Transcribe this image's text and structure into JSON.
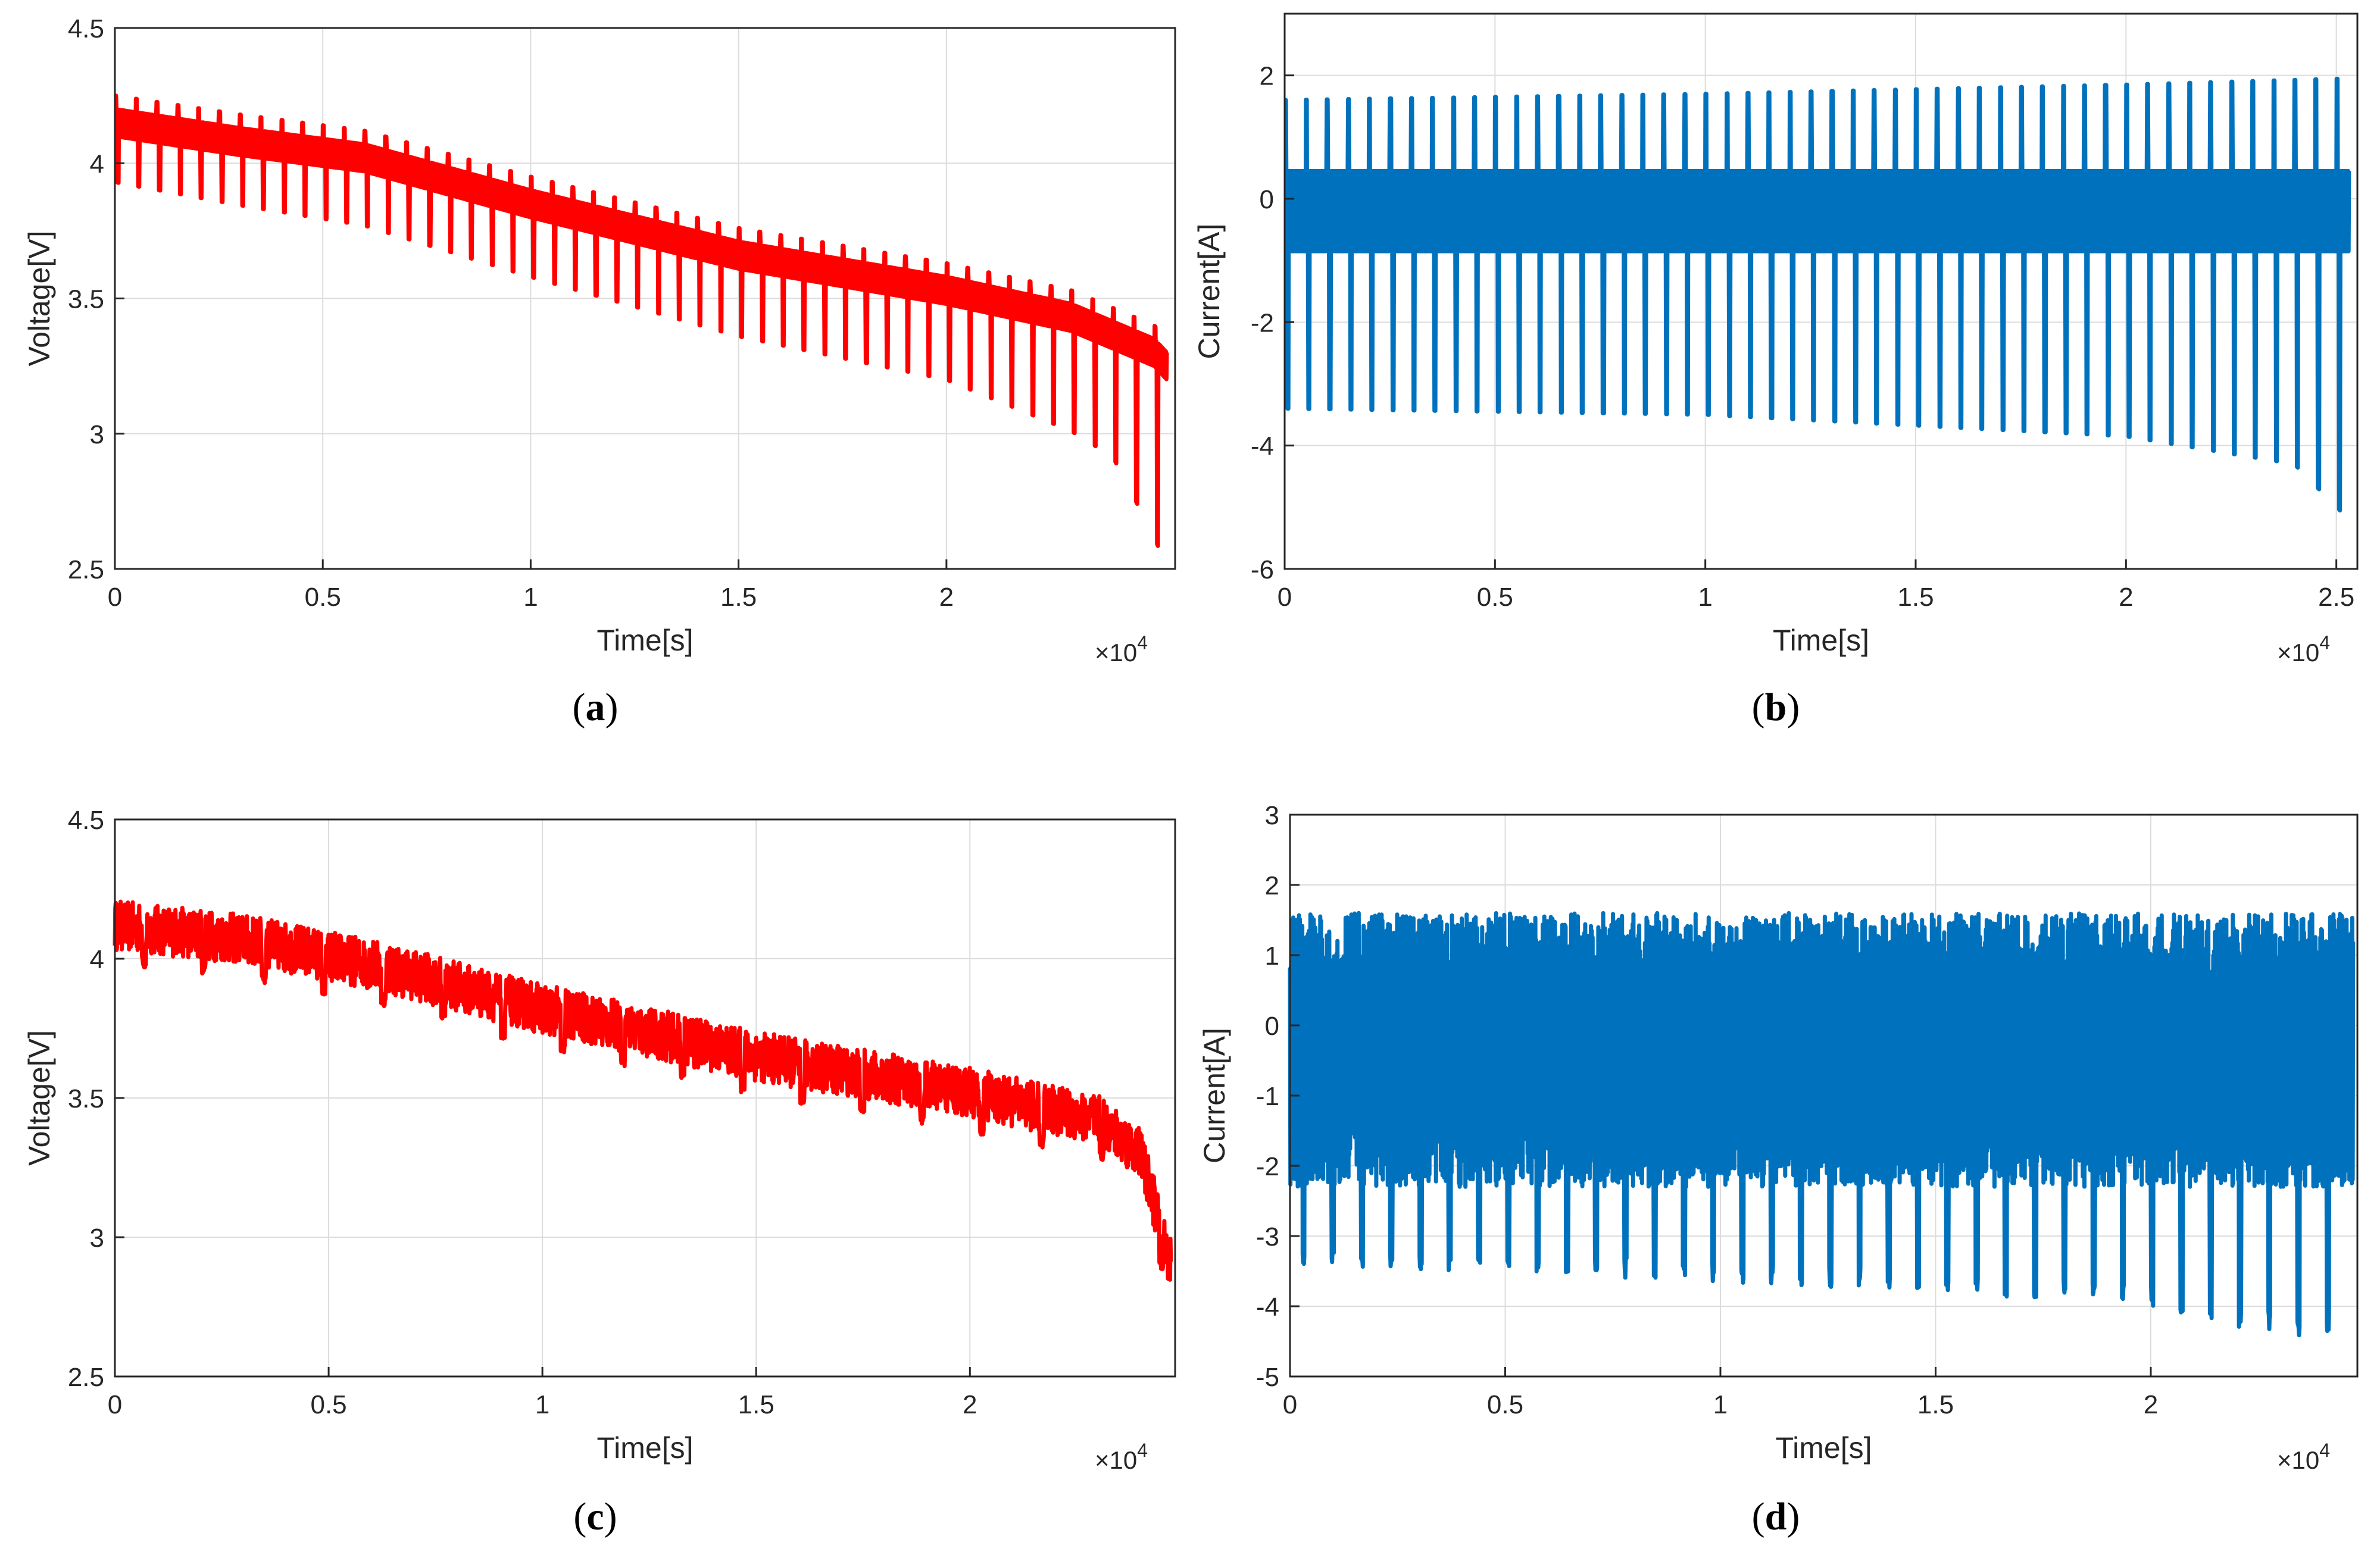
{
  "chart_data": [
    {
      "id": "a",
      "type": "line",
      "caption": "a",
      "xlabel": "Time[s]",
      "ylabel": "Voltage[V]",
      "x_exponent_label": "×10",
      "x_exponent_power": "4",
      "xlim": [
        0,
        2.55
      ],
      "ylim": [
        2.5,
        4.5
      ],
      "xticks": [
        0,
        0.5,
        1,
        1.5,
        2
      ],
      "xtick_labels": [
        "0",
        "0.5",
        "1",
        "1.5",
        "2"
      ],
      "yticks": [
        2.5,
        3,
        3.5,
        4,
        4.5
      ],
      "ytick_labels": [
        "2.5",
        "3",
        "3.5",
        "4",
        "4.5"
      ],
      "grid": true,
      "series": [
        {
          "name": "voltage",
          "color": "#ff0000",
          "signal": "pulsed",
          "x_end": 2.53,
          "pulse_period": 0.05,
          "baseline": [
            [
              0,
              4.15
            ],
            [
              0.3,
              4.08
            ],
            [
              0.6,
              4.02
            ],
            [
              1.0,
              3.85
            ],
            [
              1.5,
              3.66
            ],
            [
              2.0,
              3.53
            ],
            [
              2.3,
              3.43
            ],
            [
              2.5,
              3.3
            ],
            [
              2.53,
              3.25
            ]
          ],
          "band": 0.05,
          "pulse_high": 0.1,
          "pulse_low": [
            [
              0,
              -0.22
            ],
            [
              1.0,
              -0.27
            ],
            [
              2.0,
              -0.33
            ],
            [
              2.4,
              -0.45
            ],
            [
              2.53,
              -0.75
            ]
          ]
        }
      ]
    },
    {
      "id": "b",
      "type": "line",
      "caption": "b",
      "xlabel": "Time[s]",
      "ylabel": "Current[A]",
      "x_exponent_label": "×10",
      "x_exponent_power": "4",
      "xlim": [
        0,
        2.55
      ],
      "ylim": [
        -6,
        3
      ],
      "xticks": [
        0,
        0.5,
        1,
        1.5,
        2,
        2.5
      ],
      "xtick_labels": [
        "0",
        "0.5",
        "1",
        "1.5",
        "2",
        "2.5"
      ],
      "yticks": [
        -6,
        -4,
        -2,
        0,
        2
      ],
      "ytick_labels": [
        "-6",
        "-4",
        "-2",
        "0",
        "2"
      ],
      "grid": true,
      "series": [
        {
          "name": "current",
          "color": "#0072bd",
          "signal": "pulsed",
          "x_end": 2.53,
          "pulse_period": 0.05,
          "baseline": [
            [
              0,
              -0.2
            ],
            [
              2.53,
              -0.2
            ]
          ],
          "band": 0.65,
          "pulse_high_abs": [
            [
              0,
              1.6
            ],
            [
              1.0,
              1.7
            ],
            [
              2.0,
              1.85
            ],
            [
              2.53,
              1.95
            ]
          ],
          "pulse_low_abs": [
            [
              0,
              -3.4
            ],
            [
              1.0,
              -3.5
            ],
            [
              2.0,
              -3.85
            ],
            [
              2.4,
              -4.3
            ],
            [
              2.53,
              -5.2
            ]
          ]
        }
      ]
    },
    {
      "id": "c",
      "type": "line",
      "caption": "c",
      "xlabel": "Time[s]",
      "ylabel": "Voltage[V]",
      "x_exponent_label": "×10",
      "x_exponent_power": "4",
      "xlim": [
        0,
        2.48
      ],
      "ylim": [
        2.5,
        4.5
      ],
      "xticks": [
        0,
        0.5,
        1,
        1.5,
        2
      ],
      "xtick_labels": [
        "0",
        "0.5",
        "1",
        "1.5",
        "2"
      ],
      "yticks": [
        2.5,
        3,
        3.5,
        4,
        4.5
      ],
      "ytick_labels": [
        "2.5",
        "3",
        "3.5",
        "4",
        "4.5"
      ],
      "grid": true,
      "series": [
        {
          "name": "voltage",
          "color": "#ff0000",
          "signal": "noisy",
          "x_end": 2.47,
          "dip_period": 0.14,
          "baseline": [
            [
              0,
              4.12
            ],
            [
              0.3,
              4.07
            ],
            [
              0.6,
              3.98
            ],
            [
              1.0,
              3.82
            ],
            [
              1.5,
              3.65
            ],
            [
              2.0,
              3.52
            ],
            [
              2.3,
              3.42
            ],
            [
              2.4,
              3.3
            ],
            [
              2.47,
              2.9
            ]
          ],
          "band": 0.09,
          "dip_depth": 0.12
        }
      ]
    },
    {
      "id": "d",
      "type": "line",
      "caption": "d",
      "xlabel": "Time[s]",
      "ylabel": "Current[A]",
      "x_exponent_label": "×10",
      "x_exponent_power": "4",
      "xlim": [
        0,
        2.48
      ],
      "ylim": [
        -5,
        3
      ],
      "xticks": [
        0,
        0.5,
        1,
        1.5,
        2
      ],
      "xtick_labels": [
        "0",
        "0.5",
        "1",
        "1.5",
        "2"
      ],
      "yticks": [
        -5,
        -4,
        -3,
        -2,
        -1,
        0,
        1,
        2,
        3
      ],
      "ytick_labels": [
        "-5",
        "-4",
        "-3",
        "-2",
        "-1",
        "0",
        "1",
        "2",
        "3"
      ],
      "grid": true,
      "series": [
        {
          "name": "current",
          "color": "#0072bd",
          "signal": "noisy",
          "x_end": 2.47,
          "dip_period": 0.068,
          "baseline": [
            [
              0,
              -0.4
            ],
            [
              2.47,
              -0.4
            ]
          ],
          "band_high": 1.6,
          "band_low": -2.3,
          "dip_abs": [
            [
              0,
              -3.4
            ],
            [
              1.0,
              -3.65
            ],
            [
              2.0,
              -4.0
            ],
            [
              2.4,
              -4.6
            ],
            [
              2.47,
              -3.8
            ]
          ]
        }
      ]
    }
  ]
}
